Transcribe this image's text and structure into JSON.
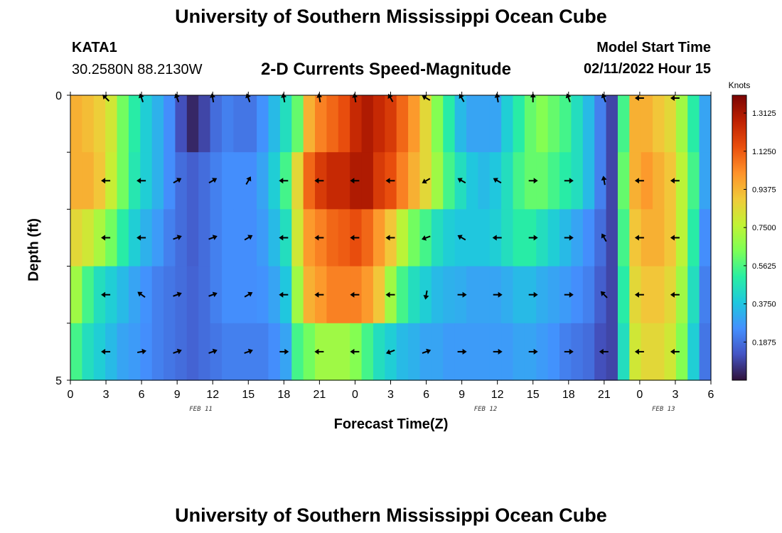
{
  "header": {
    "title": "University of Southern Mississippi Ocean Cube",
    "station_id": "KATA1",
    "coordinates": "30.2580N  88.2130W",
    "subtitle": "2-D Currents Speed-Magnitude",
    "model_start_label": "Model Start Time",
    "model_start_value": "02/11/2022 Hour 15"
  },
  "footer": {
    "title_repeat": "University of Southern Mississippi Ocean Cube"
  },
  "chart_data": {
    "type": "heatmap",
    "title": "2-D Currents Speed-Magnitude",
    "xlabel": "Forecast Time(Z)",
    "ylabel": "Depth (ft)",
    "x_tick_labels": [
      "0",
      "3",
      "6",
      "9",
      "12",
      "15",
      "18",
      "21",
      "0",
      "3",
      "6",
      "9",
      "12",
      "15",
      "18",
      "21",
      "0",
      "3",
      "6"
    ],
    "y_tick_labels": [
      "0",
      "5"
    ],
    "ylim": [
      0,
      5
    ],
    "date_labels": [
      {
        "label": "FEB 11",
        "hour": 11
      },
      {
        "label": "FEB 12",
        "hour": 35
      },
      {
        "label": "FEB 13",
        "hour": 50
      }
    ],
    "colorbar": {
      "unit": "Knots",
      "ticks": [
        "1.3125",
        "1.1250",
        "0.9375",
        "0.7500",
        "0.5625",
        "0.3750",
        "0.1875"
      ],
      "range": [
        0,
        1.4
      ],
      "colors": [
        "#30123b",
        "#4454c4",
        "#4490fe",
        "#1fc8de",
        "#29efa2",
        "#7dff56",
        "#c1f334",
        "#f1ca3a",
        "#fe922a",
        "#ea4f0d",
        "#be2102",
        "#7a0403"
      ]
    },
    "hours": [
      0,
      1,
      2,
      3,
      4,
      5,
      6,
      7,
      8,
      9,
      10,
      11,
      12,
      13,
      14,
      15,
      16,
      17,
      18,
      19,
      20,
      21,
      22,
      23,
      24,
      25,
      26,
      27,
      28,
      29,
      30,
      31,
      32,
      33,
      34,
      35,
      36,
      37,
      38,
      39,
      40,
      41,
      42,
      43,
      44,
      45,
      46,
      47,
      48,
      49,
      50,
      51,
      52,
      53,
      54
    ],
    "depth_layers": [
      "0-1",
      "1-2",
      "2-3",
      "3-4",
      "4-5"
    ],
    "series": [
      {
        "name": "depth 0-1 ft",
        "values": [
          0.95,
          0.92,
          0.88,
          0.8,
          0.62,
          0.5,
          0.4,
          0.33,
          0.25,
          0.12,
          0.04,
          0.1,
          0.18,
          0.22,
          0.2,
          0.2,
          0.26,
          0.35,
          0.45,
          0.6,
          0.95,
          1.05,
          1.1,
          1.15,
          1.25,
          1.3,
          1.25,
          1.2,
          1.1,
          1.0,
          0.85,
          0.65,
          0.5,
          0.35,
          0.3,
          0.3,
          0.3,
          0.4,
          0.5,
          0.6,
          0.65,
          0.6,
          0.55,
          0.45,
          0.35,
          0.22,
          0.1,
          0.55,
          0.95,
          0.95,
          0.9,
          0.85,
          0.7,
          0.5,
          0.3
        ]
      },
      {
        "name": "depth 1-2 ft",
        "values": [
          0.95,
          0.95,
          0.9,
          0.78,
          0.62,
          0.48,
          0.4,
          0.33,
          0.25,
          0.18,
          0.15,
          0.18,
          0.22,
          0.25,
          0.25,
          0.25,
          0.3,
          0.4,
          0.55,
          0.85,
          1.1,
          1.2,
          1.25,
          1.25,
          1.3,
          1.3,
          1.2,
          1.15,
          1.05,
          0.95,
          0.85,
          0.7,
          0.55,
          0.45,
          0.38,
          0.35,
          0.38,
          0.45,
          0.55,
          0.6,
          0.6,
          0.55,
          0.5,
          0.45,
          0.35,
          0.22,
          0.1,
          0.6,
          0.95,
          1.0,
          0.95,
          0.9,
          0.75,
          0.55,
          0.3
        ]
      },
      {
        "name": "depth 2-3 ft",
        "values": [
          0.85,
          0.8,
          0.72,
          0.62,
          0.5,
          0.4,
          0.33,
          0.28,
          0.22,
          0.18,
          0.15,
          0.18,
          0.22,
          0.25,
          0.25,
          0.25,
          0.28,
          0.35,
          0.45,
          0.8,
          1.0,
          1.05,
          1.1,
          1.12,
          1.15,
          1.1,
          1.0,
          0.9,
          0.75,
          0.62,
          0.55,
          0.45,
          0.4,
          0.38,
          0.38,
          0.38,
          0.4,
          0.45,
          0.5,
          0.5,
          0.45,
          0.4,
          0.35,
          0.3,
          0.25,
          0.18,
          0.1,
          0.55,
          0.9,
          0.95,
          0.95,
          0.9,
          0.75,
          0.5,
          0.25
        ]
      },
      {
        "name": "depth 3-4 ft",
        "values": [
          0.7,
          0.55,
          0.45,
          0.4,
          0.35,
          0.3,
          0.26,
          0.22,
          0.2,
          0.18,
          0.16,
          0.18,
          0.22,
          0.25,
          0.25,
          0.25,
          0.26,
          0.3,
          0.38,
          0.7,
          0.95,
          1.0,
          1.05,
          1.05,
          1.05,
          1.0,
          0.9,
          0.7,
          0.55,
          0.45,
          0.4,
          0.35,
          0.33,
          0.32,
          0.3,
          0.3,
          0.3,
          0.32,
          0.35,
          0.35,
          0.32,
          0.3,
          0.28,
          0.25,
          0.22,
          0.15,
          0.1,
          0.5,
          0.85,
          0.9,
          0.9,
          0.85,
          0.7,
          0.45,
          0.22
        ]
      },
      {
        "name": "depth 4-5 ft",
        "values": [
          0.55,
          0.45,
          0.4,
          0.35,
          0.3,
          0.28,
          0.25,
          0.22,
          0.2,
          0.18,
          0.16,
          0.18,
          0.2,
          0.22,
          0.22,
          0.22,
          0.22,
          0.25,
          0.3,
          0.55,
          0.62,
          0.7,
          0.7,
          0.7,
          0.65,
          0.55,
          0.45,
          0.4,
          0.35,
          0.33,
          0.3,
          0.3,
          0.28,
          0.28,
          0.28,
          0.28,
          0.28,
          0.28,
          0.3,
          0.3,
          0.28,
          0.26,
          0.22,
          0.2,
          0.18,
          0.12,
          0.1,
          0.45,
          0.8,
          0.85,
          0.85,
          0.8,
          0.65,
          0.4,
          0.2
        ]
      }
    ],
    "vectors": {
      "hours": [
        3,
        6,
        9,
        12,
        15,
        18,
        21,
        24,
        27,
        30,
        33,
        36,
        39,
        42,
        45,
        48,
        51
      ],
      "angles_deg_by_layer": [
        [
          135,
          110,
          110,
          100,
          110,
          100,
          100,
          100,
          120,
          150,
          120,
          100,
          90,
          110,
          110,
          180,
          180
        ],
        [
          180,
          180,
          30,
          30,
          60,
          180,
          180,
          180,
          180,
          210,
          150,
          150,
          0,
          0,
          100,
          180,
          180
        ],
        [
          180,
          180,
          20,
          20,
          30,
          180,
          180,
          180,
          180,
          200,
          150,
          180,
          0,
          0,
          120,
          180,
          180
        ],
        [
          180,
          145,
          20,
          20,
          30,
          180,
          180,
          180,
          180,
          260,
          0,
          0,
          0,
          0,
          135,
          180,
          180
        ],
        [
          180,
          10,
          20,
          20,
          20,
          0,
          180,
          180,
          200,
          20,
          0,
          0,
          0,
          0,
          180,
          180,
          180
        ]
      ]
    }
  }
}
